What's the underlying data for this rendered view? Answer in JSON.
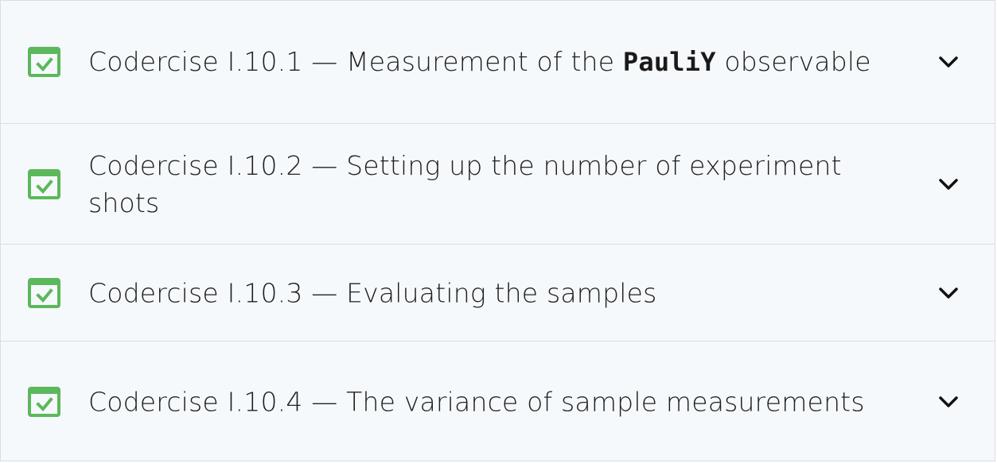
{
  "colors": {
    "check_green": "#5cb85c",
    "panel_bg": "#f6f9fc",
    "border": "#d9dde2",
    "text": "#1f1f1f"
  },
  "icons": {
    "status": "checked-box-icon",
    "expand": "chevron-down-icon"
  },
  "items": [
    {
      "title": "Codercise I.10.1 — Measurement of the ",
      "code": "PauliY",
      "title_suffix": " observable",
      "completed": true
    },
    {
      "title": "Codercise I.10.2 — Setting up the number of experiment shots",
      "completed": true
    },
    {
      "title": "Codercise I.10.3 — Evaluating the samples",
      "completed": true
    },
    {
      "title": "Codercise I.10.4 — The variance of sample measurements",
      "completed": true
    }
  ]
}
